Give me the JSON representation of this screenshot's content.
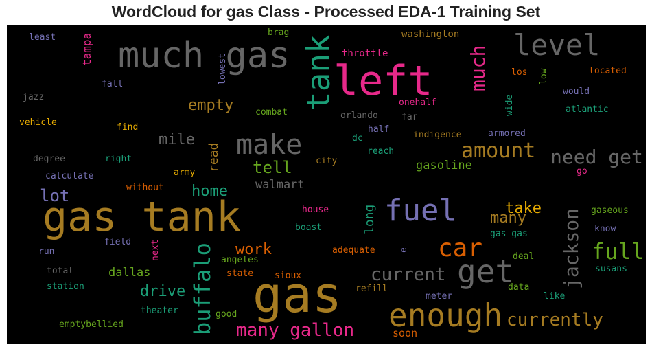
{
  "title": "WordCloud for gas Class - Processed EDA-1 Training Set",
  "colors": {
    "background": "#000000",
    "gold": "#a67c22",
    "pink": "#e7298a",
    "orange": "#d95f02",
    "teal": "#1b9e77",
    "green": "#66a61e",
    "purple": "#7570b3",
    "gray": "#666666",
    "yellow": "#e6ab02"
  },
  "words": [
    {
      "text": "gas tank",
      "color": "gold",
      "rot": 0
    },
    {
      "text": "gas",
      "color": "gold",
      "rot": 0
    },
    {
      "text": "much gas",
      "color": "gray",
      "rot": 0
    },
    {
      "text": "left",
      "color": "pink",
      "rot": 0
    },
    {
      "text": "tank",
      "color": "teal",
      "rot": -90
    },
    {
      "text": "level",
      "color": "gray",
      "rot": 0
    },
    {
      "text": "much",
      "color": "pink",
      "rot": -90
    },
    {
      "text": "fuel",
      "color": "purple",
      "rot": 0
    },
    {
      "text": "enough",
      "color": "gold",
      "rot": 0
    },
    {
      "text": "get",
      "color": "gray",
      "rot": 0
    },
    {
      "text": "car",
      "color": "orange",
      "rot": 0
    },
    {
      "text": "make",
      "color": "gray",
      "rot": 0
    },
    {
      "text": "amount",
      "color": "gold",
      "rot": 0
    },
    {
      "text": "full",
      "color": "green",
      "rot": 0
    },
    {
      "text": "buffalo",
      "color": "teal",
      "rot": -90
    },
    {
      "text": "need get",
      "color": "gray",
      "rot": 0
    },
    {
      "text": "currently",
      "color": "gold",
      "rot": 0
    },
    {
      "text": "many gallon",
      "color": "pink",
      "rot": 0
    },
    {
      "text": "jackson",
      "color": "gray",
      "rot": -90
    },
    {
      "text": "current",
      "color": "gray",
      "rot": 0
    },
    {
      "text": "empty",
      "color": "gold",
      "rot": 0
    },
    {
      "text": "tell",
      "color": "green",
      "rot": 0
    },
    {
      "text": "drive",
      "color": "teal",
      "rot": 0
    },
    {
      "text": "mile",
      "color": "gray",
      "rot": 0
    },
    {
      "text": "lot",
      "color": "purple",
      "rot": 0
    },
    {
      "text": "home",
      "color": "teal",
      "rot": 0
    },
    {
      "text": "many",
      "color": "gold",
      "rot": 0
    },
    {
      "text": "take",
      "color": "yellow",
      "rot": 0
    },
    {
      "text": "work",
      "color": "orange",
      "rot": 0
    },
    {
      "text": "gasoline",
      "color": "green",
      "rot": 0
    },
    {
      "text": "read",
      "color": "gold",
      "rot": -90
    },
    {
      "text": "long",
      "color": "teal",
      "rot": -90
    },
    {
      "text": "walmart",
      "color": "gray",
      "rot": 0
    },
    {
      "text": "dallas",
      "color": "green",
      "rot": 0
    },
    {
      "text": "tampa",
      "color": "pink",
      "rot": -90
    },
    {
      "text": "washington",
      "color": "gold",
      "rot": 0
    },
    {
      "text": "throttle",
      "color": "pink",
      "rot": 0
    },
    {
      "text": "brag",
      "color": "green",
      "rot": 0
    },
    {
      "text": "least",
      "color": "purple",
      "rot": 0
    },
    {
      "text": "lowest",
      "color": "purple",
      "rot": -90
    },
    {
      "text": "los",
      "color": "orange",
      "rot": 0
    },
    {
      "text": "low",
      "color": "green",
      "rot": -90
    },
    {
      "text": "located",
      "color": "orange",
      "rot": 0
    },
    {
      "text": "fall",
      "color": "purple",
      "rot": 0
    },
    {
      "text": "jazz",
      "color": "gray",
      "rot": 0
    },
    {
      "text": "would",
      "color": "purple",
      "rot": 0
    },
    {
      "text": "onehalf",
      "color": "pink",
      "rot": 0
    },
    {
      "text": "wide",
      "color": "teal",
      "rot": -90
    },
    {
      "text": "far",
      "color": "gray",
      "rot": 0
    },
    {
      "text": "combat",
      "color": "green",
      "rot": 0
    },
    {
      "text": "orlando",
      "color": "gray",
      "rot": 0
    },
    {
      "text": "atlantic",
      "color": "teal",
      "rot": 0
    },
    {
      "text": "vehicle",
      "color": "yellow",
      "rot": 0
    },
    {
      "text": "find",
      "color": "yellow",
      "rot": 0
    },
    {
      "text": "half",
      "color": "purple",
      "rot": 0
    },
    {
      "text": "indigence",
      "color": "gold",
      "rot": 0
    },
    {
      "text": "armored",
      "color": "purple",
      "rot": 0
    },
    {
      "text": "dc",
      "color": "teal",
      "rot": 0
    },
    {
      "text": "degree",
      "color": "gray",
      "rot": 0
    },
    {
      "text": "right",
      "color": "teal",
      "rot": 0
    },
    {
      "text": "reach",
      "color": "teal",
      "rot": 0
    },
    {
      "text": "city",
      "color": "gold",
      "rot": 0
    },
    {
      "text": "go",
      "color": "pink",
      "rot": 0
    },
    {
      "text": "calculate",
      "color": "purple",
      "rot": 0
    },
    {
      "text": "army",
      "color": "yellow",
      "rot": 0
    },
    {
      "text": "without",
      "color": "orange",
      "rot": 0
    },
    {
      "text": "gaseous",
      "color": "green",
      "rot": 0
    },
    {
      "text": "house",
      "color": "pink",
      "rot": 0
    },
    {
      "text": "know",
      "color": "purple",
      "rot": 0
    },
    {
      "text": "boast",
      "color": "teal",
      "rot": 0
    },
    {
      "text": "field",
      "color": "purple",
      "rot": 0
    },
    {
      "text": "next",
      "color": "pink",
      "rot": -90
    },
    {
      "text": "gas gas",
      "color": "teal",
      "rot": 0
    },
    {
      "text": "adequate",
      "color": "orange",
      "rot": 0
    },
    {
      "text": "e",
      "color": "purple",
      "rot": -90
    },
    {
      "text": "run",
      "color": "purple",
      "rot": 0
    },
    {
      "text": "angeles",
      "color": "green",
      "rot": 0
    },
    {
      "text": "deal",
      "color": "green",
      "rot": 0
    },
    {
      "text": "total",
      "color": "gray",
      "rot": 0
    },
    {
      "text": "state",
      "color": "orange",
      "rot": 0
    },
    {
      "text": "sioux",
      "color": "orange",
      "rot": 0
    },
    {
      "text": "susans",
      "color": "teal",
      "rot": 0
    },
    {
      "text": "station",
      "color": "teal",
      "rot": 0
    },
    {
      "text": "refill",
      "color": "gold",
      "rot": 0
    },
    {
      "text": "data",
      "color": "green",
      "rot": 0
    },
    {
      "text": "meter",
      "color": "purple",
      "rot": 0
    },
    {
      "text": "like",
      "color": "teal",
      "rot": 0
    },
    {
      "text": "theater",
      "color": "teal",
      "rot": 0
    },
    {
      "text": "good",
      "color": "green",
      "rot": 0
    },
    {
      "text": "soon",
      "color": "orange",
      "rot": 0
    },
    {
      "text": "emptybellied",
      "color": "green",
      "rot": 0
    }
  ]
}
